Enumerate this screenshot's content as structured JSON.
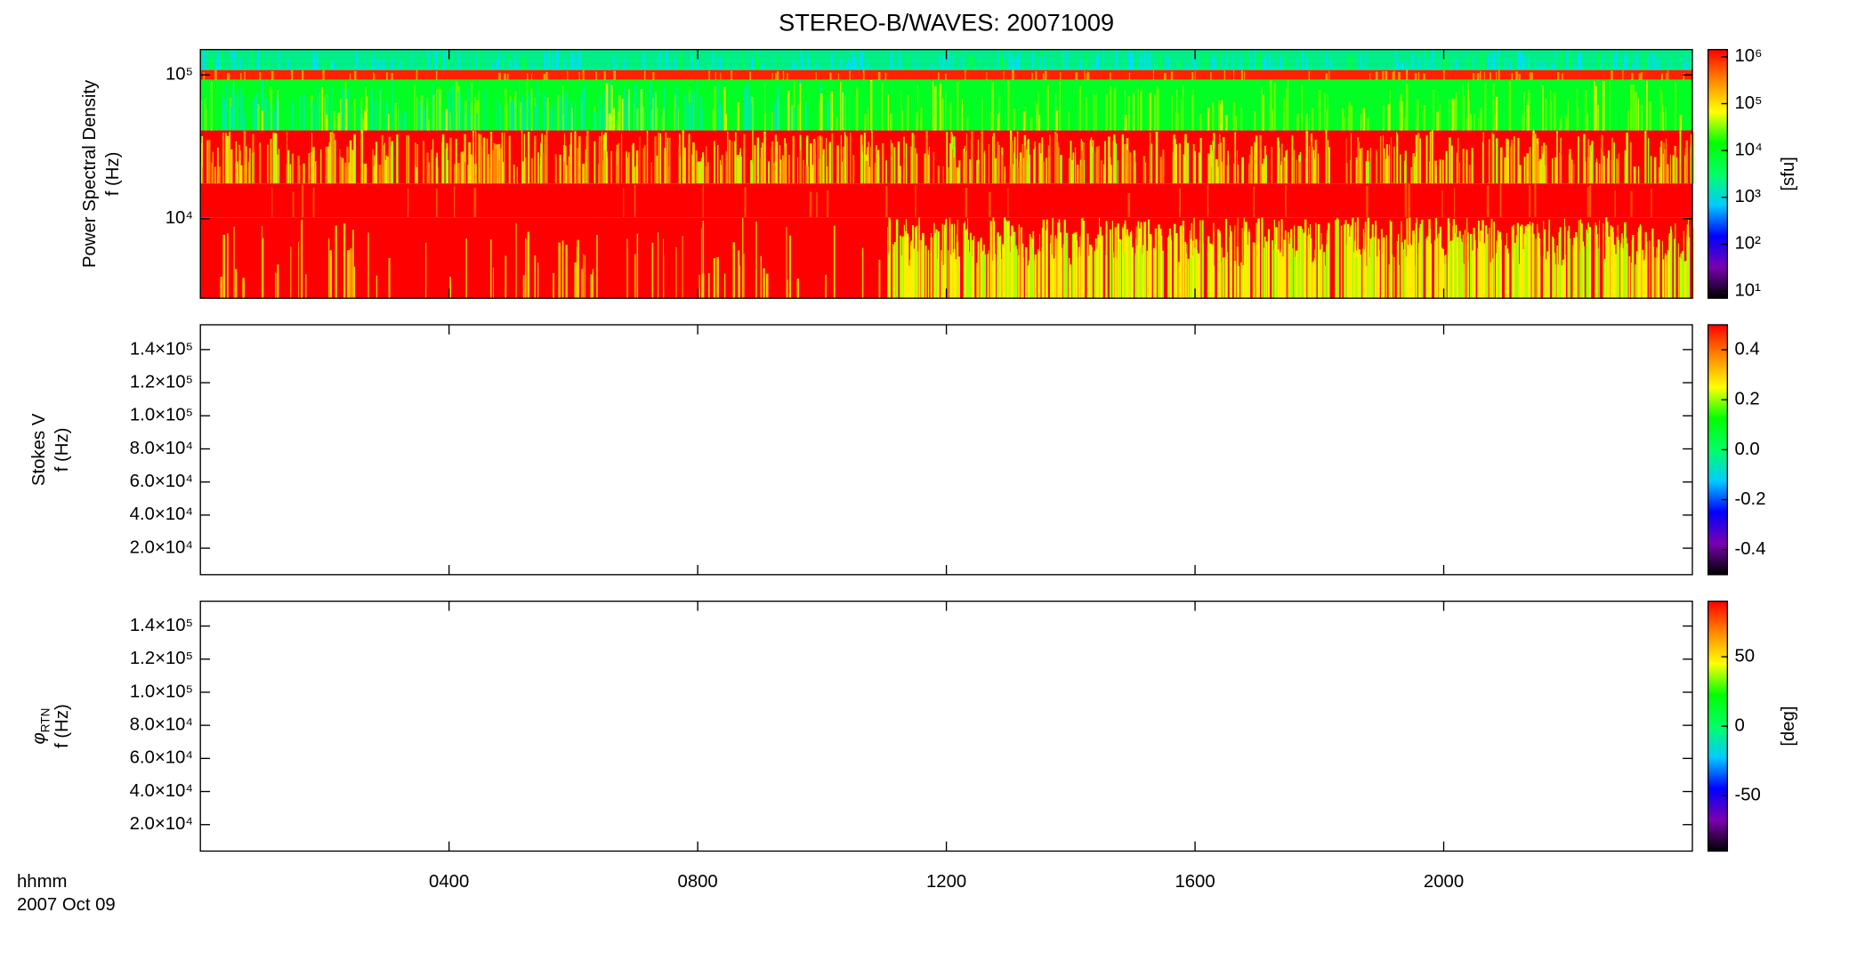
{
  "chart_data": [
    {
      "type": "spectrogram",
      "title": "STEREO-B/WAVES: 20071009",
      "ylabel": [
        "Power Spectral Density",
        "f (Hz)"
      ],
      "ylog": true,
      "ylim": [
        2800,
        150000
      ],
      "yticks": [
        {
          "value": 10000,
          "label": "10⁴"
        },
        {
          "value": 100000,
          "label": "10⁵"
        }
      ],
      "xlim": [
        0,
        24
      ],
      "xticks": [
        4,
        8,
        12,
        16,
        20
      ],
      "zlog": true,
      "zlim": [
        7,
        1430000
      ],
      "zlabel": "[sfu]",
      "zticks": [
        {
          "value": 10,
          "label": "10¹"
        },
        {
          "value": 100,
          "label": "10²"
        },
        {
          "value": 1000,
          "label": "10³"
        },
        {
          "value": 10000,
          "label": "10⁴"
        },
        {
          "value": 100000,
          "label": "10⁵"
        },
        {
          "value": 1000000,
          "label": "10⁶"
        }
      ],
      "colorscale": [
        "#000000",
        "#7a00b0",
        "#0000ff",
        "#00ccff",
        "#00ff66",
        "#00ff00",
        "#ffff00",
        "#ff8800",
        "#ff0000"
      ]
    },
    {
      "type": "spectrogram",
      "ylabel": [
        "Stokes V",
        "f (Hz)"
      ],
      "ylog": false,
      "ylim": [
        4000,
        155000
      ],
      "yticks": [
        {
          "value": 20000,
          "label": "2.0×10⁴"
        },
        {
          "value": 40000,
          "label": "4.0×10⁴"
        },
        {
          "value": 60000,
          "label": "6.0×10⁴"
        },
        {
          "value": 80000,
          "label": "8.0×10⁴"
        },
        {
          "value": 100000,
          "label": "1.0×10⁵"
        },
        {
          "value": 120000,
          "label": "1.2×10⁵"
        },
        {
          "value": 140000,
          "label": "1.4×10⁵"
        }
      ],
      "xlim": [
        0,
        24
      ],
      "xticks": [
        4,
        8,
        12,
        16,
        20
      ],
      "zlog": false,
      "zlim": [
        -0.5,
        0.5
      ],
      "zticks": [
        -0.4,
        -0.2,
        {
          "value": 0,
          "label": "0.0"
        },
        0.2,
        0.4
      ],
      "colorscale": [
        "#000000",
        "#7a00b0",
        "#0000ff",
        "#00ccff",
        "#00ff66",
        "#00ff00",
        "#ffff00",
        "#ff8800",
        "#ff0000"
      ]
    },
    {
      "type": "spectrogram",
      "ylabel": [
        {
          "text": "φ",
          "sub": "RTN"
        },
        "f (Hz)"
      ],
      "ylog": false,
      "ylim": [
        4000,
        155000
      ],
      "yticks": [
        {
          "value": 20000,
          "label": "2.0×10⁴"
        },
        {
          "value": 40000,
          "label": "4.0×10⁴"
        },
        {
          "value": 60000,
          "label": "6.0×10⁴"
        },
        {
          "value": 80000,
          "label": "8.0×10⁴"
        },
        {
          "value": 100000,
          "label": "1.0×10⁵"
        },
        {
          "value": 120000,
          "label": "1.2×10⁵"
        },
        {
          "value": 140000,
          "label": "1.4×10⁵"
        }
      ],
      "xlim": [
        0,
        24
      ],
      "xticks": [
        {
          "value": 4,
          "label": "0400"
        },
        {
          "value": 8,
          "label": "0800"
        },
        {
          "value": 12,
          "label": "1200"
        },
        {
          "value": 16,
          "label": "1600"
        },
        {
          "value": 20,
          "label": "2000"
        }
      ],
      "xlabel": "hhmm",
      "date": "2007 Oct 09",
      "zlog": false,
      "zlim": [
        -90,
        90
      ],
      "zlabel": "[deg]",
      "zticks": [
        -50,
        0,
        50
      ],
      "colorscale": [
        "#000000",
        "#7a00b0",
        "#0000ff",
        "#00ccff",
        "#00ff66",
        "#00ff00",
        "#ffff00",
        "#ff8800",
        "#ff0000"
      ]
    }
  ]
}
